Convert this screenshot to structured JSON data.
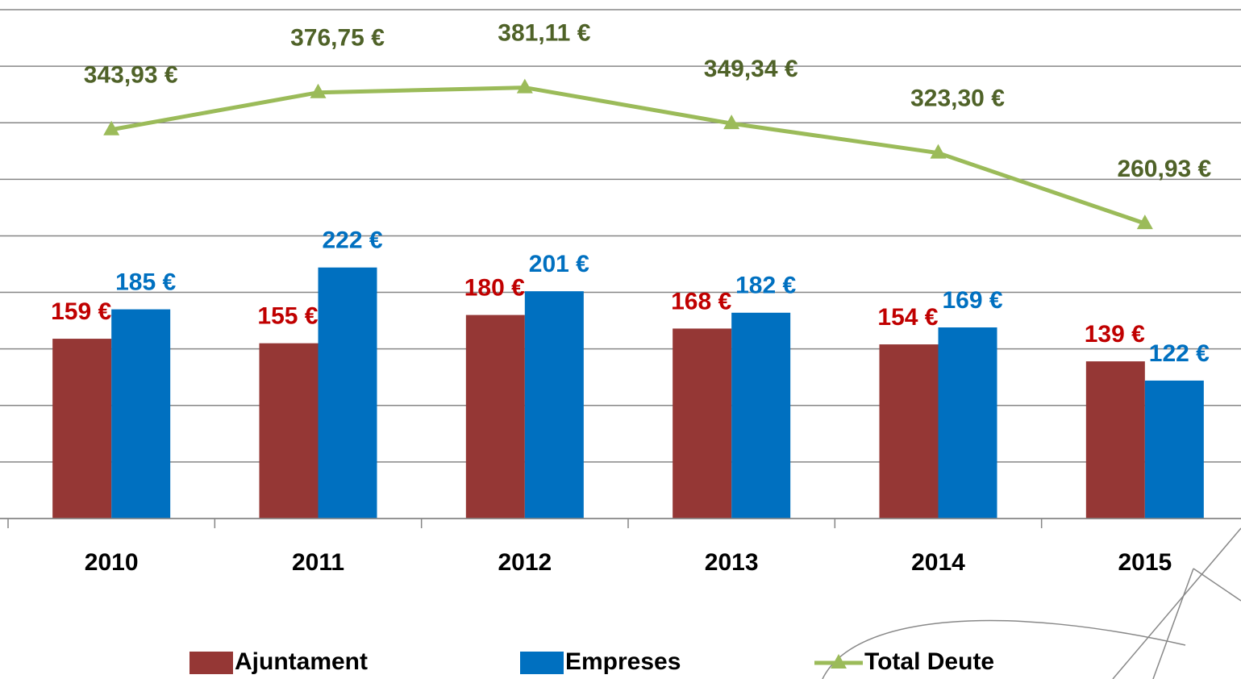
{
  "chart_data": {
    "type": "bar_line",
    "categories": [
      "2010",
      "2011",
      "2012",
      "2013",
      "2014",
      "2015"
    ],
    "series": [
      {
        "name": "Ajuntament",
        "type": "bar",
        "color": "#953735",
        "label_color": "#c00000",
        "values": [
          159,
          155,
          180,
          168,
          154,
          139
        ],
        "value_labels": [
          "159 €",
          "155 €",
          "180 €",
          "168 €",
          "154 €",
          "139 €"
        ]
      },
      {
        "name": "Empreses",
        "type": "bar",
        "color": "#0070c0",
        "label_color": "#0070c0",
        "values": [
          185,
          222,
          201,
          182,
          169,
          122
        ],
        "value_labels": [
          "185 €",
          "222 €",
          "201 €",
          "182 €",
          "169 €",
          "122 €"
        ]
      },
      {
        "name": "Total Deute",
        "type": "line",
        "color": "#9bbb59",
        "label_color": "#4f6228",
        "values": [
          343.93,
          376.75,
          381.11,
          349.34,
          323.3,
          260.93
        ],
        "value_labels": [
          "343,93 €",
          "376,75 €",
          "381,11 €",
          "349,34 €",
          "323,30 €",
          "260,93 €"
        ]
      }
    ],
    "ylim": [
      0,
      450
    ],
    "yticks": [
      0,
      50,
      100,
      150,
      200,
      250,
      300,
      350,
      400,
      450
    ],
    "grid": true
  }
}
